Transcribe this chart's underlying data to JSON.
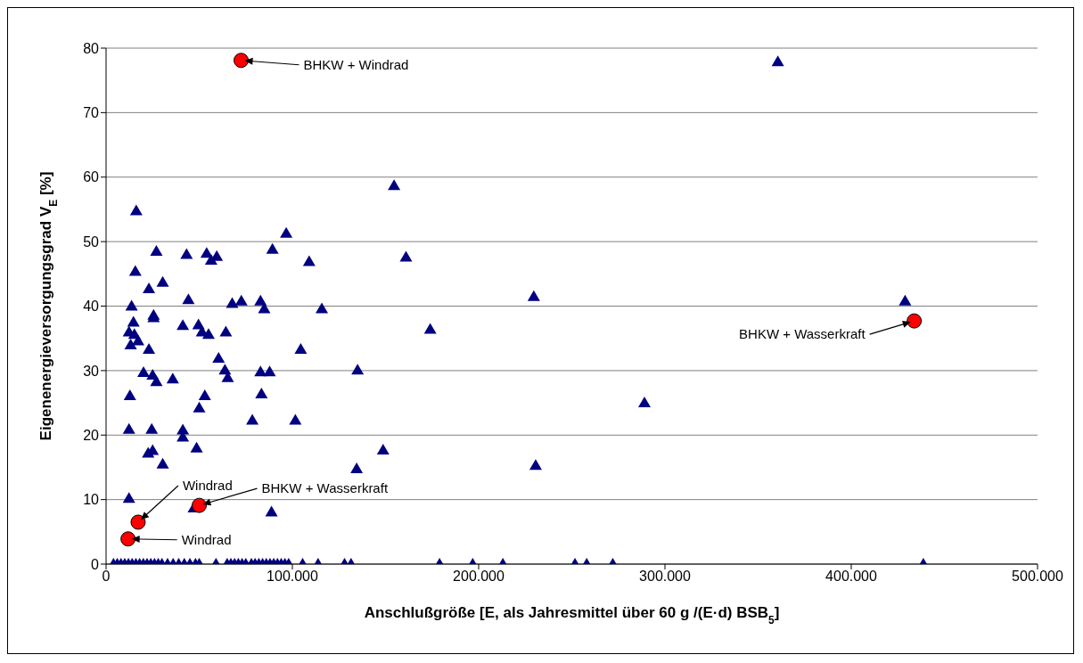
{
  "chart_data": {
    "type": "scatter",
    "xlabel": "Anschlußgröße [E, als Jahresmittel über 60 g /(E·d) BSB$_{5}$]",
    "ylabel": "Eigenenergieversorgungsgrad V$_{E}$ [%]",
    "xlim": [
      0,
      500000
    ],
    "xticks": [
      0,
      {
        "value": 100000,
        "label": "100.000"
      },
      {
        "value": 200000,
        "label": "200.000"
      },
      {
        "value": 300000,
        "label": "300.000"
      },
      {
        "value": 400000,
        "label": "400.000"
      },
      {
        "value": 500000,
        "label": "500.000"
      }
    ],
    "ylim": [
      0,
      80
    ],
    "yticks": [
      0,
      10,
      20,
      30,
      40,
      50,
      60,
      70,
      80
    ],
    "grid": "y",
    "legend": false,
    "series": [
      {
        "color": "#000080",
        "marker": "triangle",
        "x": [
          16200,
          96700,
          27000,
          43200,
          54000,
          59400,
          56400,
          89300,
          109000,
          15700,
          30400,
          23000,
          13700,
          44200,
          67700,
          72600,
          82900,
          84900,
          115800,
          25500,
          25500,
          14700,
          12300,
          15200,
          17200,
          13200,
          23000,
          41200,
          49600,
          51500,
          55000,
          64300,
          104500,
          60400,
          63800,
          65300,
          82900,
          87800,
          20100,
          25000,
          27000,
          35800,
          12800,
          53000,
          83400,
          50000,
          78500,
          101600,
          12300,
          24500,
          41200,
          41200,
          25000,
          22600,
          48600,
          30400,
          12300,
          47100,
          88800,
          154600,
          161000,
          229600,
          174000,
          135000,
          289000,
          148700,
          134500,
          230600,
          360600,
          428900,
          4000,
          6000,
          8000,
          10000,
          12000,
          14000,
          16000,
          18000,
          20000,
          22000,
          24000,
          26000,
          28000,
          30000,
          33000,
          36000,
          39000,
          42000,
          45000,
          48000,
          50000,
          59000,
          65000,
          67000,
          69000,
          71000,
          73000,
          75000,
          78000,
          80000,
          82000,
          84000,
          86000,
          88000,
          90000,
          92000,
          94000,
          96000,
          98000,
          105500,
          113800,
          128000,
          131500,
          179000,
          196800,
          213000,
          251700,
          258000,
          272000,
          438700
        ],
        "values": [
          54.8,
          51.3,
          48.5,
          48.0,
          48.2,
          47.7,
          47.1,
          48.8,
          46.9,
          45.4,
          43.7,
          42.7,
          40.0,
          41.0,
          40.4,
          40.8,
          40.8,
          39.6,
          39.6,
          38.6,
          38.2,
          37.5,
          36.0,
          35.6,
          34.6,
          34.0,
          33.3,
          37.0,
          37.1,
          36.0,
          35.6,
          36.0,
          33.3,
          31.9,
          30.1,
          28.9,
          29.8,
          29.8,
          29.7,
          29.3,
          28.3,
          28.7,
          26.1,
          26.1,
          26.4,
          24.2,
          22.3,
          22.3,
          20.9,
          20.9,
          20.8,
          19.7,
          17.6,
          17.2,
          18.0,
          15.5,
          10.2,
          8.7,
          8.1,
          58.7,
          47.6,
          41.5,
          36.4,
          30.1,
          25.0,
          17.7,
          14.8,
          15.3,
          77.9,
          40.8,
          0,
          0,
          0,
          0,
          0,
          0,
          0,
          0,
          0,
          0,
          0,
          0,
          0,
          0,
          0,
          0,
          0,
          0,
          0,
          0,
          0,
          0,
          0,
          0,
          0,
          0,
          0,
          0,
          0,
          0,
          0,
          0,
          0,
          0,
          0,
          0,
          0,
          0,
          0,
          0,
          0,
          0,
          0,
          0,
          0,
          0,
          0,
          0,
          0,
          0
        ]
      },
      {
        "color": "#ff0000",
        "marker": "circle",
        "x": [
          72500,
          433800,
          50000,
          17200,
          11800
        ],
        "values": [
          78.1,
          37.7,
          9.1,
          6.5,
          3.9
        ]
      }
    ],
    "annotations": [
      "BHKW + Windrad",
      "BHKW + Wasserkraft",
      "BHKW + Wasserkraft",
      "Windrad",
      "Windrad"
    ]
  }
}
